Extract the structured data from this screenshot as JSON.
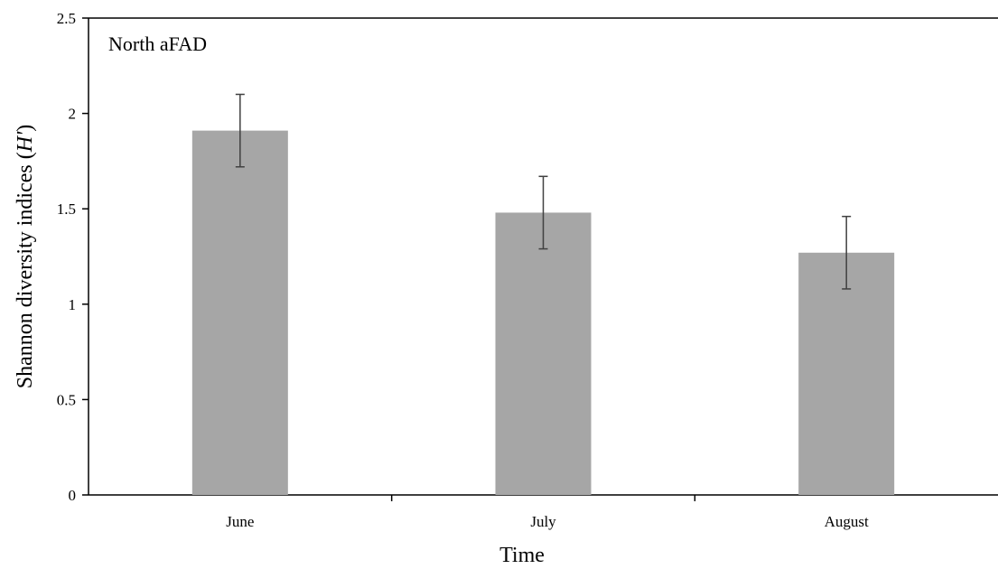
{
  "chart_data": {
    "type": "bar",
    "title": "North aFAD",
    "xlabel": "Time",
    "ylabel": "Shannon diversity indices (H')",
    "ylabel_parts": {
      "prefix": "Shannon diversity indices (",
      "italic": "H'",
      "suffix": ")"
    },
    "categories": [
      "June",
      "July",
      "August"
    ],
    "values": [
      1.91,
      1.48,
      1.27
    ],
    "error": [
      0.19,
      0.19,
      0.19
    ],
    "ylim": [
      0,
      2.5
    ],
    "yticks": [
      0,
      0.5,
      1,
      1.5,
      2,
      2.5
    ],
    "ytick_labels": [
      "0",
      "0.5",
      "1",
      "1.5",
      "2",
      "2.5"
    ],
    "grid": false,
    "legend": "none",
    "bar_color": "#a6a6a6",
    "errorbar_color": "#404040"
  }
}
